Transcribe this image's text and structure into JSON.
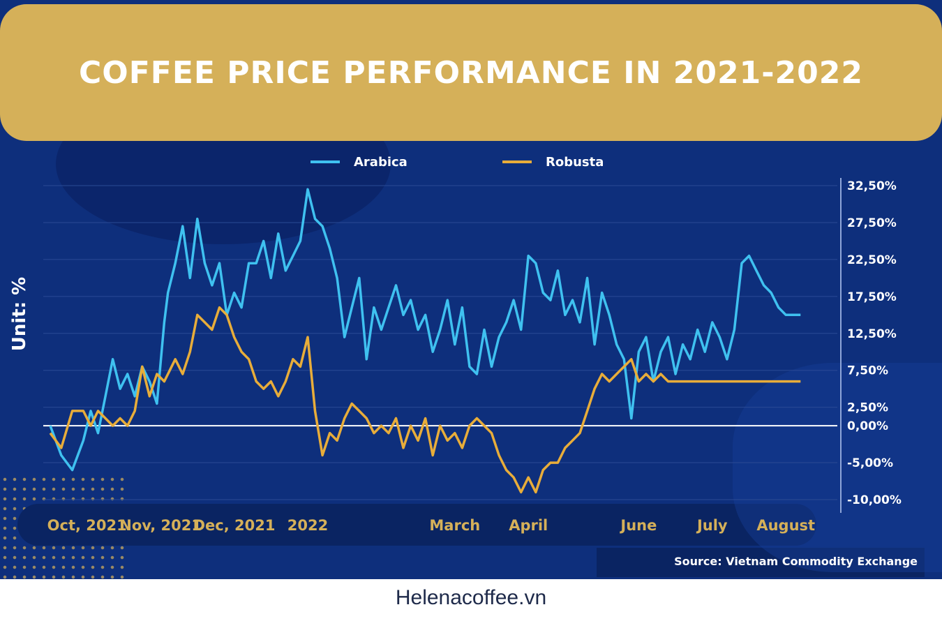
{
  "header": {
    "title": "COFFEE PRICE PERFORMANCE IN 2021-2022"
  },
  "footer": {
    "site": "Helenacoffee.vn"
  },
  "source": "Source: Vietnam Commodity Exchange",
  "colors": {
    "background": "#0e2f7c",
    "banner": "#d5b059",
    "arabica": "#3fc1f0",
    "robusta": "#e8ad3a",
    "axis": "#ffffff",
    "grid": "#2a4a95"
  },
  "chart_data": {
    "type": "line",
    "ylabel": "Unit: %",
    "ylim": [
      -10,
      32.5
    ],
    "y_axis_position": "right",
    "yticks": [
      {
        "value": 32.5,
        "label": "32,50%"
      },
      {
        "value": 27.5,
        "label": "27,50%"
      },
      {
        "value": 22.5,
        "label": "22,50%"
      },
      {
        "value": 17.5,
        "label": "17,50%"
      },
      {
        "value": 12.5,
        "label": "12,50%"
      },
      {
        "value": 7.5,
        "label": "7,50%"
      },
      {
        "value": 2.5,
        "label": "2,50%"
      },
      {
        "value": 0,
        "label": "0,00%"
      },
      {
        "value": -5,
        "label": "-5,00%"
      },
      {
        "value": -10,
        "label": "-10,00%"
      }
    ],
    "xticks": [
      {
        "x": 0.5,
        "label": "Oct, 2021"
      },
      {
        "x": 1.5,
        "label": "Nov, 2021"
      },
      {
        "x": 2.5,
        "label": "Dec, 2021"
      },
      {
        "x": 3.5,
        "label": "2022"
      },
      {
        "x": 5.5,
        "label": "March"
      },
      {
        "x": 6.5,
        "label": "April"
      },
      {
        "x": 8.0,
        "label": "June"
      },
      {
        "x": 9.0,
        "label": "July"
      },
      {
        "x": 10.0,
        "label": "August"
      }
    ],
    "xlim": [
      0,
      10.7
    ],
    "legend_position": "top",
    "series": [
      {
        "name": "Arabica",
        "x": [
          0,
          0.15,
          0.3,
          0.45,
          0.55,
          0.65,
          0.75,
          0.85,
          0.95,
          1.05,
          1.15,
          1.25,
          1.35,
          1.45,
          1.55,
          1.6,
          1.7,
          1.8,
          1.9,
          2.0,
          2.1,
          2.2,
          2.3,
          2.4,
          2.5,
          2.6,
          2.7,
          2.8,
          2.9,
          3.0,
          3.1,
          3.2,
          3.3,
          3.4,
          3.5,
          3.6,
          3.7,
          3.8,
          3.9,
          4.0,
          4.1,
          4.2,
          4.3,
          4.4,
          4.5,
          4.6,
          4.7,
          4.8,
          4.9,
          5.0,
          5.1,
          5.2,
          5.3,
          5.4,
          5.5,
          5.6,
          5.7,
          5.8,
          5.9,
          6.0,
          6.1,
          6.2,
          6.3,
          6.4,
          6.5,
          6.6,
          6.7,
          6.8,
          6.9,
          7.0,
          7.1,
          7.2,
          7.3,
          7.4,
          7.5,
          7.6,
          7.7,
          7.8,
          7.9,
          8.0,
          8.1,
          8.2,
          8.3,
          8.4,
          8.5,
          8.6,
          8.7,
          8.8,
          8.9,
          9.0,
          9.1,
          9.2,
          9.3,
          9.4,
          9.5,
          9.6,
          9.7,
          9.8,
          9.9,
          10.0,
          10.1,
          10.2
        ],
        "values": [
          0,
          -4,
          -6,
          -2,
          2,
          -1,
          4,
          9,
          5,
          7,
          4,
          8,
          6,
          3,
          14,
          18,
          22,
          27,
          20,
          28,
          22,
          19,
          22,
          15,
          18,
          16,
          22,
          22,
          25,
          20,
          26,
          21,
          23,
          25,
          32,
          28,
          27,
          24,
          20,
          12,
          16,
          20,
          9,
          16,
          13,
          16,
          19,
          15,
          17,
          13,
          15,
          10,
          13,
          17,
          11,
          16,
          8,
          7,
          13,
          8,
          12,
          14,
          17,
          13,
          23,
          22,
          18,
          17,
          21,
          15,
          17,
          14,
          20,
          11,
          18,
          15,
          11,
          9,
          1,
          10,
          12,
          6,
          10,
          12,
          7,
          11,
          9,
          13,
          10,
          14,
          12,
          9,
          13,
          22,
          23,
          21,
          19,
          18,
          16,
          15,
          15,
          15
        ],
        "color": "#3fc1f0"
      },
      {
        "name": "Robusta",
        "x": [
          0,
          0.15,
          0.3,
          0.45,
          0.55,
          0.65,
          0.75,
          0.85,
          0.95,
          1.05,
          1.15,
          1.25,
          1.35,
          1.45,
          1.55,
          1.6,
          1.7,
          1.8,
          1.9,
          2.0,
          2.1,
          2.2,
          2.3,
          2.4,
          2.5,
          2.6,
          2.7,
          2.8,
          2.9,
          3.0,
          3.1,
          3.2,
          3.3,
          3.4,
          3.5,
          3.6,
          3.7,
          3.8,
          3.9,
          4.0,
          4.1,
          4.2,
          4.3,
          4.4,
          4.5,
          4.6,
          4.7,
          4.8,
          4.9,
          5.0,
          5.1,
          5.2,
          5.3,
          5.4,
          5.5,
          5.6,
          5.7,
          5.8,
          5.9,
          6.0,
          6.1,
          6.2,
          6.3,
          6.4,
          6.5,
          6.6,
          6.7,
          6.8,
          6.9,
          7.0,
          7.1,
          7.2,
          7.3,
          7.4,
          7.5,
          7.6,
          7.7,
          7.8,
          7.9,
          8.0,
          8.1,
          8.2,
          8.3,
          8.4,
          8.5,
          8.6,
          8.7,
          8.8,
          8.9,
          9.0,
          9.1,
          9.2,
          9.3,
          9.4,
          9.5,
          9.6,
          9.7,
          9.8,
          9.9,
          10.0,
          10.1,
          10.2
        ],
        "values": [
          -1,
          -3,
          2,
          2,
          0,
          2,
          1,
          0,
          1,
          0,
          2,
          8,
          4,
          7,
          6,
          7,
          9,
          7,
          10,
          15,
          14,
          13,
          16,
          15,
          12,
          10,
          9,
          6,
          5,
          6,
          4,
          6,
          9,
          8,
          12,
          2,
          -4,
          -1,
          -2,
          1,
          3,
          2,
          1,
          -1,
          0,
          -1,
          1,
          -3,
          0,
          -2,
          1,
          -4,
          0,
          -2,
          -1,
          -3,
          0,
          1,
          0,
          -1,
          -4,
          -6,
          -7,
          -9,
          -7,
          -9,
          -6,
          -5,
          -5,
          -3,
          -2,
          -1,
          2,
          5,
          7,
          6,
          7,
          8,
          9,
          6,
          7,
          6,
          7,
          6,
          6,
          6,
          6,
          6,
          6,
          6,
          6,
          6,
          6,
          6,
          6,
          6,
          6,
          6,
          6,
          6,
          6,
          6
        ],
        "color": "#e8ad3a"
      }
    ]
  }
}
